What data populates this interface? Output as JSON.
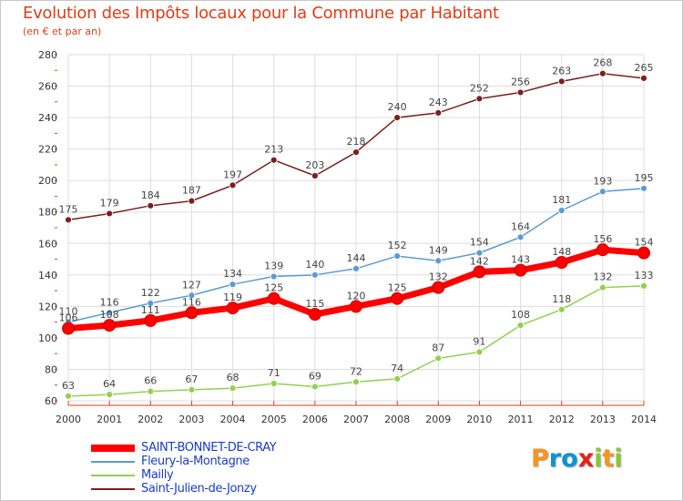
{
  "title": "Evolution des Impôts locaux pour la Commune par Habitant",
  "subtitle": "(en € et par an)",
  "logo": {
    "text": "Proxiti",
    "letters": [
      "P",
      "r",
      "o",
      "x",
      "i",
      "t",
      "i"
    ],
    "colors": [
      "#f7941d",
      "#0a94d6",
      "#0a94d6",
      "#e2231a",
      "#8cc63f",
      "#f7941d",
      "#8cc63f"
    ]
  },
  "colors": {
    "title": "#e03c14",
    "axis": "#e03c14",
    "grid": "#dddddd",
    "legend_text": "#1a3cc8"
  },
  "chart_data": {
    "type": "line",
    "title": "Evolution des Impôts locaux pour la Commune par Habitant",
    "subtitle": "(en € et par an)",
    "xlabel": "",
    "ylabel": "",
    "x": [
      2000,
      2001,
      2002,
      2003,
      2004,
      2005,
      2006,
      2007,
      2008,
      2009,
      2010,
      2011,
      2012,
      2013,
      2014
    ],
    "ylim": [
      60,
      280
    ],
    "yticks": [
      60,
      80,
      100,
      120,
      140,
      160,
      180,
      200,
      220,
      240,
      260,
      280
    ],
    "grid": true,
    "legend_position": "bottom",
    "series": [
      {
        "name": "Saint-Julien-de-Jonzy",
        "color": "#7b1f1f",
        "width": 1.5,
        "values": [
          175,
          179,
          184,
          187,
          197,
          213,
          203,
          218,
          240,
          243,
          252,
          256,
          263,
          268,
          265
        ]
      },
      {
        "name": "Fleury-la-Montagne",
        "color": "#5b9bd5",
        "width": 1.5,
        "values": [
          110,
          116,
          122,
          127,
          134,
          139,
          140,
          144,
          152,
          149,
          154,
          164,
          181,
          193,
          195
        ]
      },
      {
        "name": "Mailly",
        "color": "#92d050",
        "width": 1.5,
        "values": [
          63,
          64,
          66,
          67,
          68,
          71,
          69,
          72,
          74,
          87,
          91,
          108,
          118,
          132,
          133
        ]
      },
      {
        "name": "SAINT-BONNET-DE-CRAY",
        "color": "#ff0000",
        "width": 7,
        "values": [
          106,
          108,
          111,
          116,
          119,
          125,
          115,
          120,
          125,
          132,
          142,
          143,
          148,
          156,
          154
        ]
      }
    ],
    "legend": [
      {
        "name": "SAINT-BONNET-DE-CRAY",
        "color": "#ff0000"
      },
      {
        "name": "Fleury-la-Montagne",
        "color": "#5b9bd5"
      },
      {
        "name": "Mailly",
        "color": "#92d050"
      },
      {
        "name": "Saint-Julien-de-Jonzy",
        "color": "#7b1f1f"
      }
    ]
  }
}
